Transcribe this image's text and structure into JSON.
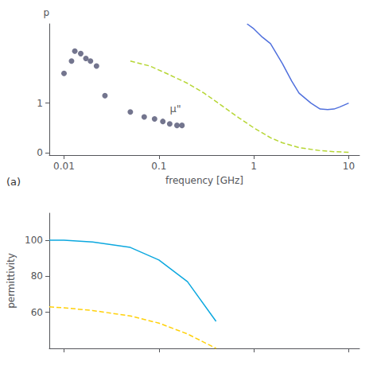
{
  "chart_data": [
    {
      "type": "line",
      "xlabel": "frequency [GHz]",
      "ylabel": "p",
      "log": "x",
      "grid": false,
      "xlim": [
        0.007,
        13
      ],
      "xticks": [
        0.01,
        0.1,
        1,
        10
      ],
      "ylim": [
        -0.05,
        2.6
      ],
      "yticks": [
        0,
        1
      ],
      "series": [
        {
          "type": "line",
          "line_style": "solid",
          "x": [
            0.85,
            1.0,
            1.2,
            1.5,
            2.0,
            2.5,
            3.0,
            4.0,
            5.0,
            6.0,
            7.0,
            8.0,
            10.0
          ],
          "values": [
            2.6,
            2.5,
            2.35,
            2.2,
            1.8,
            1.45,
            1.2,
            1.0,
            0.88,
            0.87,
            0.88,
            0.92,
            1.0
          ]
        },
        {
          "type": "line",
          "line_style": "dashed",
          "x": [
            0.05,
            0.08,
            0.12,
            0.2,
            0.3,
            0.5,
            0.7,
            1.0,
            1.5,
            2.0,
            3.0,
            5.0,
            7.0,
            10.0
          ],
          "values": [
            1.85,
            1.75,
            1.6,
            1.4,
            1.2,
            0.9,
            0.7,
            0.5,
            0.3,
            0.2,
            0.1,
            0.04,
            0.02,
            0.005
          ]
        },
        {
          "type": "scatter",
          "marker": "circle",
          "x": [
            0.01,
            0.012,
            0.013,
            0.015,
            0.017,
            0.019,
            0.022,
            0.027,
            0.05,
            0.07,
            0.09,
            0.11,
            0.13,
            0.155,
            0.175
          ],
          "values": [
            1.6,
            1.85,
            2.05,
            2.0,
            1.9,
            1.85,
            1.75,
            1.15,
            0.82,
            0.72,
            0.68,
            0.63,
            0.58,
            0.55,
            0.55
          ]
        }
      ],
      "annotations": [
        {
          "text": "μ\"",
          "x": 0.13,
          "y": 0.78
        },
        {
          "text": "(a)"
        }
      ]
    },
    {
      "type": "line",
      "ylabel": "permittivity",
      "log": "x",
      "grid": false,
      "tick_labels": "y",
      "xlim": [
        0.007,
        13
      ],
      "xticks": [
        0.01,
        0.1,
        1,
        10
      ],
      "ylim": [
        40,
        115
      ],
      "yticks": [
        60,
        80,
        100
      ],
      "series": [
        {
          "type": "line",
          "line_style": "solid",
          "x": [
            0.007,
            0.01,
            0.02,
            0.05,
            0.1,
            0.2,
            0.4
          ],
          "values": [
            100,
            100,
            99,
            96,
            89,
            77,
            55
          ]
        },
        {
          "type": "line",
          "line_style": "dashed",
          "x": [
            0.007,
            0.01,
            0.02,
            0.05,
            0.1,
            0.2,
            0.4
          ],
          "values": [
            63,
            62.5,
            61,
            58,
            54,
            48,
            40
          ]
        }
      ]
    }
  ]
}
